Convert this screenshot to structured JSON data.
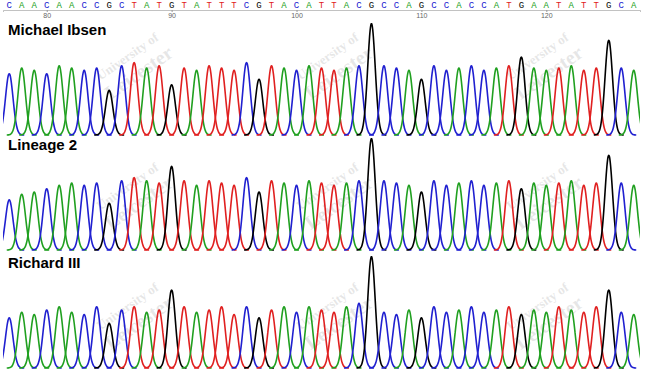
{
  "chart_data": {
    "type": "chromatogram",
    "categories": [
      "C",
      "A",
      "A",
      "C",
      "A",
      "A",
      "C",
      "C",
      "G",
      "C",
      "T",
      "A",
      "T",
      "G",
      "T",
      "A",
      "T",
      "T",
      "T",
      "C",
      "G",
      "T",
      "A",
      "C",
      "A",
      "T",
      "T",
      "A",
      "C",
      "G",
      "C",
      "C",
      "A",
      "G",
      "C",
      "C",
      "A",
      "C",
      "C",
      "A",
      "T",
      "G",
      "A",
      "A",
      "T",
      "A",
      "T",
      "T",
      "G",
      "C",
      "A"
    ],
    "x": [
      77,
      78,
      79,
      80,
      81,
      82,
      83,
      84,
      85,
      86,
      87,
      88,
      89,
      90,
      91,
      92,
      93,
      94,
      95,
      96,
      97,
      98,
      99,
      100,
      101,
      102,
      103,
      104,
      105,
      106,
      107,
      108,
      109,
      110,
      111,
      112,
      113,
      114,
      115,
      116,
      117,
      118,
      119,
      120,
      121,
      122,
      123,
      124,
      125,
      126,
      127
    ],
    "colors": [
      "#2020d0",
      "#20a020",
      "#20a020",
      "#2020d0",
      "#20a020",
      "#20a020",
      "#2020d0",
      "#2020d0",
      "#000000",
      "#2020d0",
      "#e02020",
      "#20a020",
      "#e02020",
      "#000000",
      "#e02020",
      "#20a020",
      "#e02020",
      "#e02020",
      "#e02020",
      "#2020d0",
      "#000000",
      "#e02020",
      "#20a020",
      "#2020d0",
      "#20a020",
      "#e02020",
      "#e02020",
      "#20a020",
      "#2020d0",
      "#000000",
      "#2020d0",
      "#2020d0",
      "#20a020",
      "#000000",
      "#2020d0",
      "#2020d0",
      "#20a020",
      "#2020d0",
      "#2020d0",
      "#20a020",
      "#e02020",
      "#000000",
      "#20a020",
      "#20a020",
      "#e02020",
      "#20a020",
      "#e02020",
      "#e02020",
      "#000000",
      "#2020d0",
      "#20a020"
    ],
    "xlim": [
      76.5,
      127.5
    ],
    "xticks": [
      80,
      90,
      100,
      110,
      120
    ],
    "ylim": [
      0,
      100
    ],
    "tick_labels": "x",
    "annotations": [
      "University of",
      "Leicester"
    ],
    "series": [
      {
        "name": "Michael Ibsen",
        "values": [
          55,
          60,
          58,
          55,
          62,
          60,
          58,
          60,
          40,
          62,
          65,
          60,
          62,
          45,
          60,
          58,
          62,
          60,
          58,
          65,
          50,
          62,
          60,
          58,
          62,
          60,
          58,
          60,
          62,
          100,
          62,
          60,
          58,
          50,
          62,
          58,
          60,
          62,
          58,
          60,
          62,
          70,
          60,
          58,
          60,
          62,
          58,
          60,
          85,
          60,
          58
        ]
      },
      {
        "name": "Lineage 2",
        "values": [
          45,
          50,
          52,
          55,
          58,
          60,
          58,
          60,
          42,
          62,
          65,
          62,
          60,
          75,
          62,
          58,
          62,
          60,
          58,
          65,
          52,
          62,
          60,
          58,
          62,
          60,
          58,
          60,
          62,
          100,
          62,
          60,
          58,
          52,
          62,
          58,
          60,
          62,
          58,
          60,
          62,
          55,
          60,
          58,
          60,
          62,
          58,
          60,
          85,
          60,
          58
        ]
      },
      {
        "name": "Richard III",
        "values": [
          45,
          50,
          48,
          52,
          55,
          50,
          48,
          55,
          40,
          52,
          55,
          50,
          52,
          70,
          55,
          50,
          52,
          55,
          48,
          55,
          45,
          52,
          55,
          50,
          55,
          52,
          50,
          55,
          58,
          100,
          50,
          48,
          52,
          45,
          55,
          50,
          52,
          55,
          50,
          52,
          55,
          48,
          52,
          50,
          55,
          52,
          50,
          55,
          70,
          50,
          48
        ]
      }
    ]
  }
}
